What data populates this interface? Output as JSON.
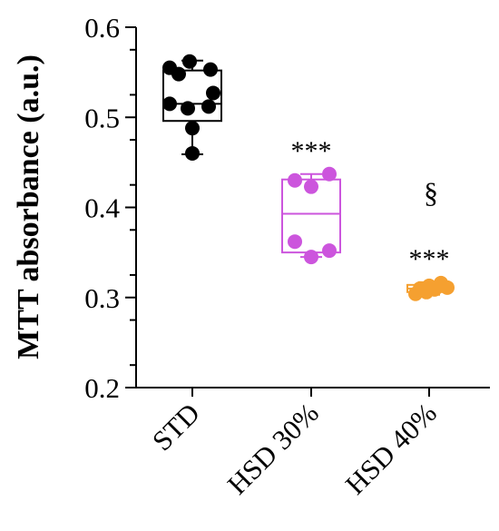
{
  "chart_data": {
    "type": "scatter",
    "ylabel": "MTT absorbance (a.u.)",
    "ylim": [
      0.2,
      0.6
    ],
    "yticks": [
      "0.2",
      "0.3",
      "0.4",
      "0.5",
      "0.6"
    ],
    "categories": [
      "STD",
      "HSD 30%",
      "HSD 40%"
    ],
    "series": [
      {
        "category": "STD",
        "color": "#000000",
        "values": [
          0.562,
          0.555,
          0.553,
          0.548,
          0.527,
          0.515,
          0.512,
          0.51,
          0.488,
          0.46
        ],
        "box": {
          "min": 0.459,
          "q1": 0.496,
          "median": 0.515,
          "q3": 0.552,
          "max": 0.563
        },
        "annotation": ""
      },
      {
        "category": "HSD 30%",
        "color": "#cc55dd",
        "values": [
          0.437,
          0.43,
          0.423,
          0.362,
          0.352,
          0.345
        ],
        "box": {
          "min": 0.345,
          "q1": 0.35,
          "median": 0.393,
          "q3": 0.431,
          "max": 0.437
        },
        "annotation": "***"
      },
      {
        "category": "HSD 40%",
        "color": "#f5a030",
        "values": [
          0.316,
          0.313,
          0.311,
          0.31,
          0.309,
          0.306,
          0.304
        ],
        "box": {
          "min": 0.303,
          "q1": 0.306,
          "median": 0.31,
          "q3": 0.314,
          "max": 0.317
        },
        "annotation": "***",
        "annotation2": "§"
      }
    ]
  }
}
